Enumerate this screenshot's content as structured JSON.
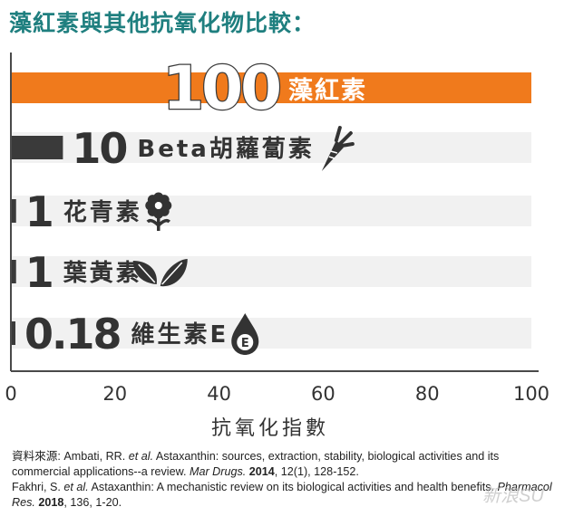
{
  "title": "藻紅素與其他抗氧化物比較：",
  "colors": {
    "title": "#1f7f7f",
    "highlight_bar": "#f07a1c",
    "bar": "#3a3a3a",
    "band": "#f1f1f1",
    "axis": "#4a4a4a"
  },
  "chart_data": {
    "type": "bar",
    "orientation": "horizontal",
    "categories": [
      "藻紅素",
      "Beta胡蘿蔔素",
      "花青素",
      "葉黃素",
      "維生素E"
    ],
    "values": [
      100,
      10,
      1,
      1,
      0.18
    ],
    "value_labels": [
      "100",
      "10",
      "1",
      "1",
      "0.18"
    ],
    "icons": [
      "none",
      "carrot-icon",
      "flower-icon",
      "leaves-icon",
      "vitamin-e-drop-icon"
    ],
    "icon_text": "E",
    "xlabel": "抗氧化指數",
    "xlim": [
      0,
      100
    ],
    "xticks": [
      "0",
      "20",
      "40",
      "60",
      "80",
      "100"
    ],
    "grid": false,
    "legend": "none"
  },
  "references": {
    "ref1": {
      "prefix": "資料來源: Ambati, RR. ",
      "etal": "et al.",
      "body": " Astaxanthin: sources, extraction, stability, biological activities and its commercial applications--a review. ",
      "journal": "Mar Drugs.",
      "year": " 2014",
      "tail": ", 12(1), 128-152."
    },
    "ref2": {
      "prefix": "Fakhri, S. ",
      "etal": "et al.",
      "body": " Astaxanthin: A mechanistic review on its biological activities and health benefits. ",
      "journal": "Pharmacol Res.",
      "year": " 2018",
      "tail": ", 136, 1-20."
    }
  },
  "watermark": "新浪SU"
}
